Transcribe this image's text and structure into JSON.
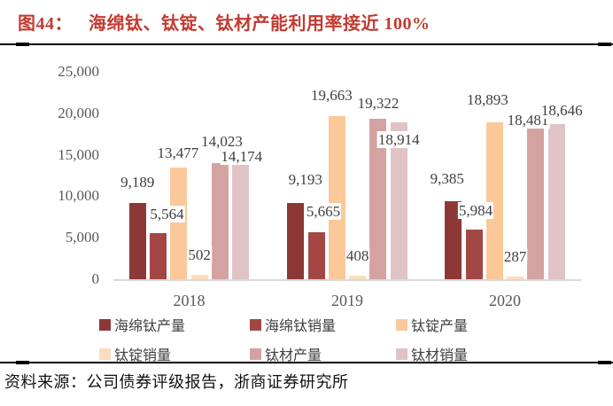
{
  "title": {
    "prefix": "图44：",
    "text": "海绵钛、钛锭、钛材产能利用率接近 100%"
  },
  "source": "资料来源：公司债券评级报告，浙商证券研究所",
  "colors": {
    "title_red": "#C23B31",
    "axis_label_gray": "#595959",
    "data_label": "#3F3F3F",
    "axis_line": "#D9D9D9",
    "divider": "#000000"
  },
  "chart_data": {
    "type": "bar",
    "title": "海绵钛、钛锭、钛材产能利用率接近 100%",
    "categories": [
      "2018",
      "2019",
      "2020"
    ],
    "series": [
      {
        "name": "海绵钛产量",
        "color": "#8B3837",
        "values": [
          9189,
          9193,
          9385
        ]
      },
      {
        "name": "海绵钛销量",
        "color": "#A34744",
        "values": [
          5564,
          5665,
          5984
        ]
      },
      {
        "name": "钛锭产量",
        "color": "#FBC89A",
        "values": [
          13477,
          19663,
          18893
        ]
      },
      {
        "name": "钛锭销量",
        "color": "#FBDDBE",
        "values": [
          502,
          408,
          287
        ]
      },
      {
        "name": "钛材产量",
        "color": "#D5A2A2",
        "values": [
          14023,
          19322,
          18481
        ]
      },
      {
        "name": "钛材销量",
        "color": "#E0C3C4",
        "values": [
          14174,
          18914,
          18646
        ]
      }
    ],
    "xlabel": "",
    "ylabel": "",
    "ylim": [
      0,
      25000
    ],
    "yticks": [
      0,
      5000,
      10000,
      15000,
      20000,
      25000
    ],
    "ytick_labels": [
      "0",
      "5,000",
      "10,000",
      "15,000",
      "20,000",
      "25,000"
    ],
    "grid": false,
    "data_labels": true,
    "legend_position": "bottom"
  }
}
